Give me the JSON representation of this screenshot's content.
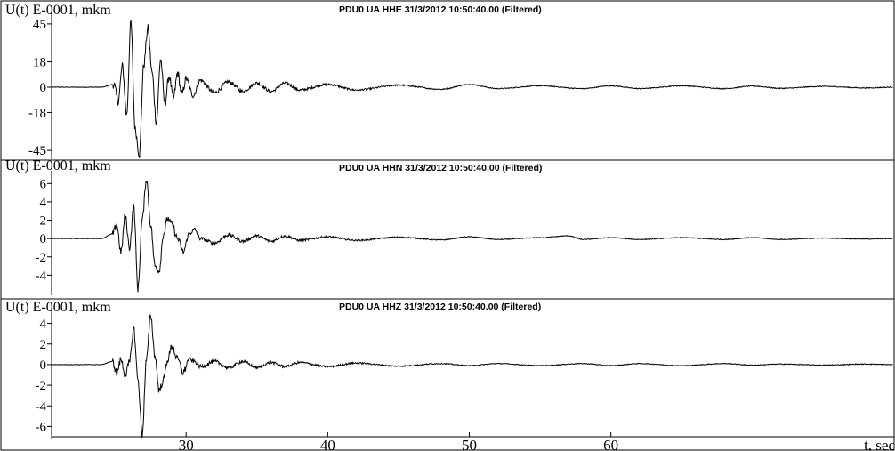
{
  "chart_data": [
    {
      "type": "line",
      "title": "PDU0 UA  HHE 31/3/2012 10:50:40.00 (Filtered)",
      "ylabel": "U(t) E-0001, mkm",
      "yticks": [
        45,
        18,
        0,
        -18,
        -45
      ],
      "ylim": [
        -50,
        50
      ],
      "xlim": [
        20.5,
        80
      ],
      "series": [
        {
          "color": "#000000",
          "x": [
            20.5,
            22,
            24,
            24.9,
            25.2,
            25.5,
            25.8,
            26.1,
            26.4,
            26.7,
            27.0,
            27.3,
            27.6,
            27.9,
            28.2,
            28.5,
            28.8,
            29.1,
            29.4,
            29.7,
            30.0,
            30.5,
            31,
            32,
            33,
            34,
            35,
            36,
            37,
            38,
            40,
            42,
            45,
            48,
            50,
            52,
            55,
            58,
            60,
            62,
            65,
            68,
            70,
            72,
            75,
            78,
            80
          ],
          "y": [
            0,
            0,
            0,
            2,
            -10,
            15,
            -20,
            46,
            -30,
            -48,
            15,
            42,
            10,
            -25,
            20,
            -12,
            8,
            -8,
            10,
            -5,
            6,
            -6,
            5,
            -4,
            4,
            -3,
            3,
            -3,
            3,
            -2,
            2,
            -2,
            1.5,
            -1.5,
            2,
            -1,
            1,
            -1,
            1,
            -1,
            1,
            -1,
            0.8,
            -0.8,
            0.6,
            -0.5,
            0
          ]
        }
      ]
    },
    {
      "type": "line",
      "title": "PDU0 UA  HHN 31/3/2012 10:50:40.00 (Filtered)",
      "ylabel": "U(t) E-0001, mkm",
      "yticks": [
        6,
        4,
        2,
        0,
        -2,
        -4
      ],
      "ylim": [
        -6,
        7
      ],
      "xlim": [
        20.5,
        80
      ],
      "series": [
        {
          "color": "#000000",
          "x": [
            20.5,
            22,
            24,
            24.8,
            25.1,
            25.4,
            25.7,
            26.0,
            26.3,
            26.6,
            26.9,
            27.2,
            27.5,
            27.8,
            28.1,
            28.4,
            28.7,
            29.0,
            29.4,
            29.8,
            30.2,
            30.6,
            31,
            32,
            33,
            34,
            35,
            36,
            37,
            38,
            40,
            42,
            45,
            48,
            50,
            52,
            55,
            57,
            58,
            60,
            62,
            65,
            68,
            70,
            72,
            75,
            78,
            80
          ],
          "y": [
            0,
            0,
            0,
            0.5,
            1.5,
            -1.5,
            2.5,
            -1,
            3.5,
            -5.5,
            2,
            6.5,
            1.5,
            -3,
            -3.5,
            0.5,
            2.2,
            1.5,
            0,
            -1.5,
            0.5,
            1,
            0,
            -0.5,
            0.4,
            -0.3,
            0.3,
            -0.3,
            0.3,
            -0.2,
            0.2,
            -0.2,
            0.15,
            -0.15,
            0.2,
            -0.1,
            0.1,
            0.3,
            -0.1,
            0.1,
            -0.1,
            0.1,
            -0.1,
            0.1,
            -0.1,
            0.05,
            -0.05,
            0
          ]
        }
      ]
    },
    {
      "type": "line",
      "title": "PDU0 UA  HHZ 31/3/2012 10:50:40.00 (Filtered)",
      "ylabel": "U(t) E-0001, mkm",
      "yticks": [
        4,
        2,
        0,
        -2,
        -4,
        -6
      ],
      "ylim": [
        -7,
        5
      ],
      "xlim": [
        20.5,
        80
      ],
      "series": [
        {
          "color": "#000000",
          "x": [
            20.5,
            22,
            24,
            24.8,
            25.1,
            25.4,
            25.7,
            26.0,
            26.3,
            26.6,
            26.9,
            27.2,
            27.5,
            27.8,
            28.1,
            28.4,
            28.7,
            29.0,
            29.4,
            29.8,
            30.2,
            30.6,
            31,
            32,
            33,
            34,
            35,
            36,
            37,
            38,
            40,
            42,
            45,
            48,
            50,
            52,
            55,
            58,
            60,
            62,
            65,
            68,
            70,
            72,
            75,
            78,
            80
          ],
          "y": [
            0,
            0,
            0,
            0.3,
            -0.8,
            0.5,
            -1,
            0.2,
            3.5,
            -1.5,
            -6.8,
            0.5,
            4.8,
            0.8,
            -2.5,
            -1.5,
            0.5,
            1.8,
            0.5,
            -0.8,
            0.5,
            0.3,
            -0.2,
            0.3,
            -0.3,
            0.3,
            -0.3,
            0.2,
            -0.2,
            0.2,
            -0.2,
            0.15,
            -0.15,
            0.1,
            -0.1,
            0.1,
            -0.1,
            0.1,
            -0.1,
            0.1,
            -0.1,
            0.1,
            -0.05,
            0.05,
            -0.05,
            0.05,
            0
          ]
        }
      ]
    }
  ],
  "x_axis": {
    "ticks": [
      30,
      40,
      50,
      60
    ],
    "label": "t, sec",
    "xlim": [
      20.5,
      80
    ]
  }
}
